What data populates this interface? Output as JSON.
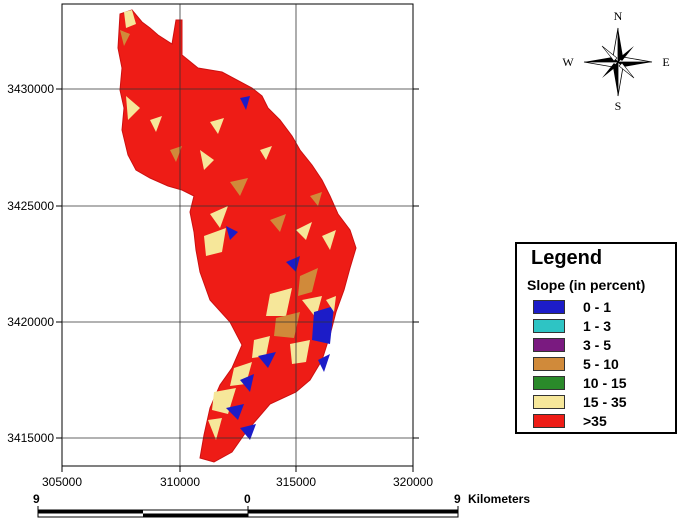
{
  "map": {
    "x_ticks": [
      "305000",
      "310000",
      "315000",
      "320000"
    ],
    "y_ticks": [
      "3430000",
      "3425000",
      "3420000",
      "3415000"
    ]
  },
  "compass": {
    "n": "N",
    "s": "S",
    "e": "E",
    "w": "W"
  },
  "legend": {
    "title": "Legend",
    "subtitle": "Slope (in percent)",
    "items": [
      {
        "label": "0 - 1",
        "color": "#1c1cc8"
      },
      {
        "label": "1 - 3",
        "color": "#2ec4c4"
      },
      {
        "label": "3 - 5",
        "color": "#7a1a80"
      },
      {
        "label": "5 - 10",
        "color": "#d08a3a"
      },
      {
        "label": "10 - 15",
        "color": "#2a8a2a"
      },
      {
        "label": "15 - 35",
        "color": "#f6e79a"
      },
      {
        "label": ">35",
        "color": "#ee1c16"
      }
    ]
  },
  "scalebar": {
    "left": "9",
    "middle": "0",
    "right": "9",
    "unit": "Kilometers"
  }
}
